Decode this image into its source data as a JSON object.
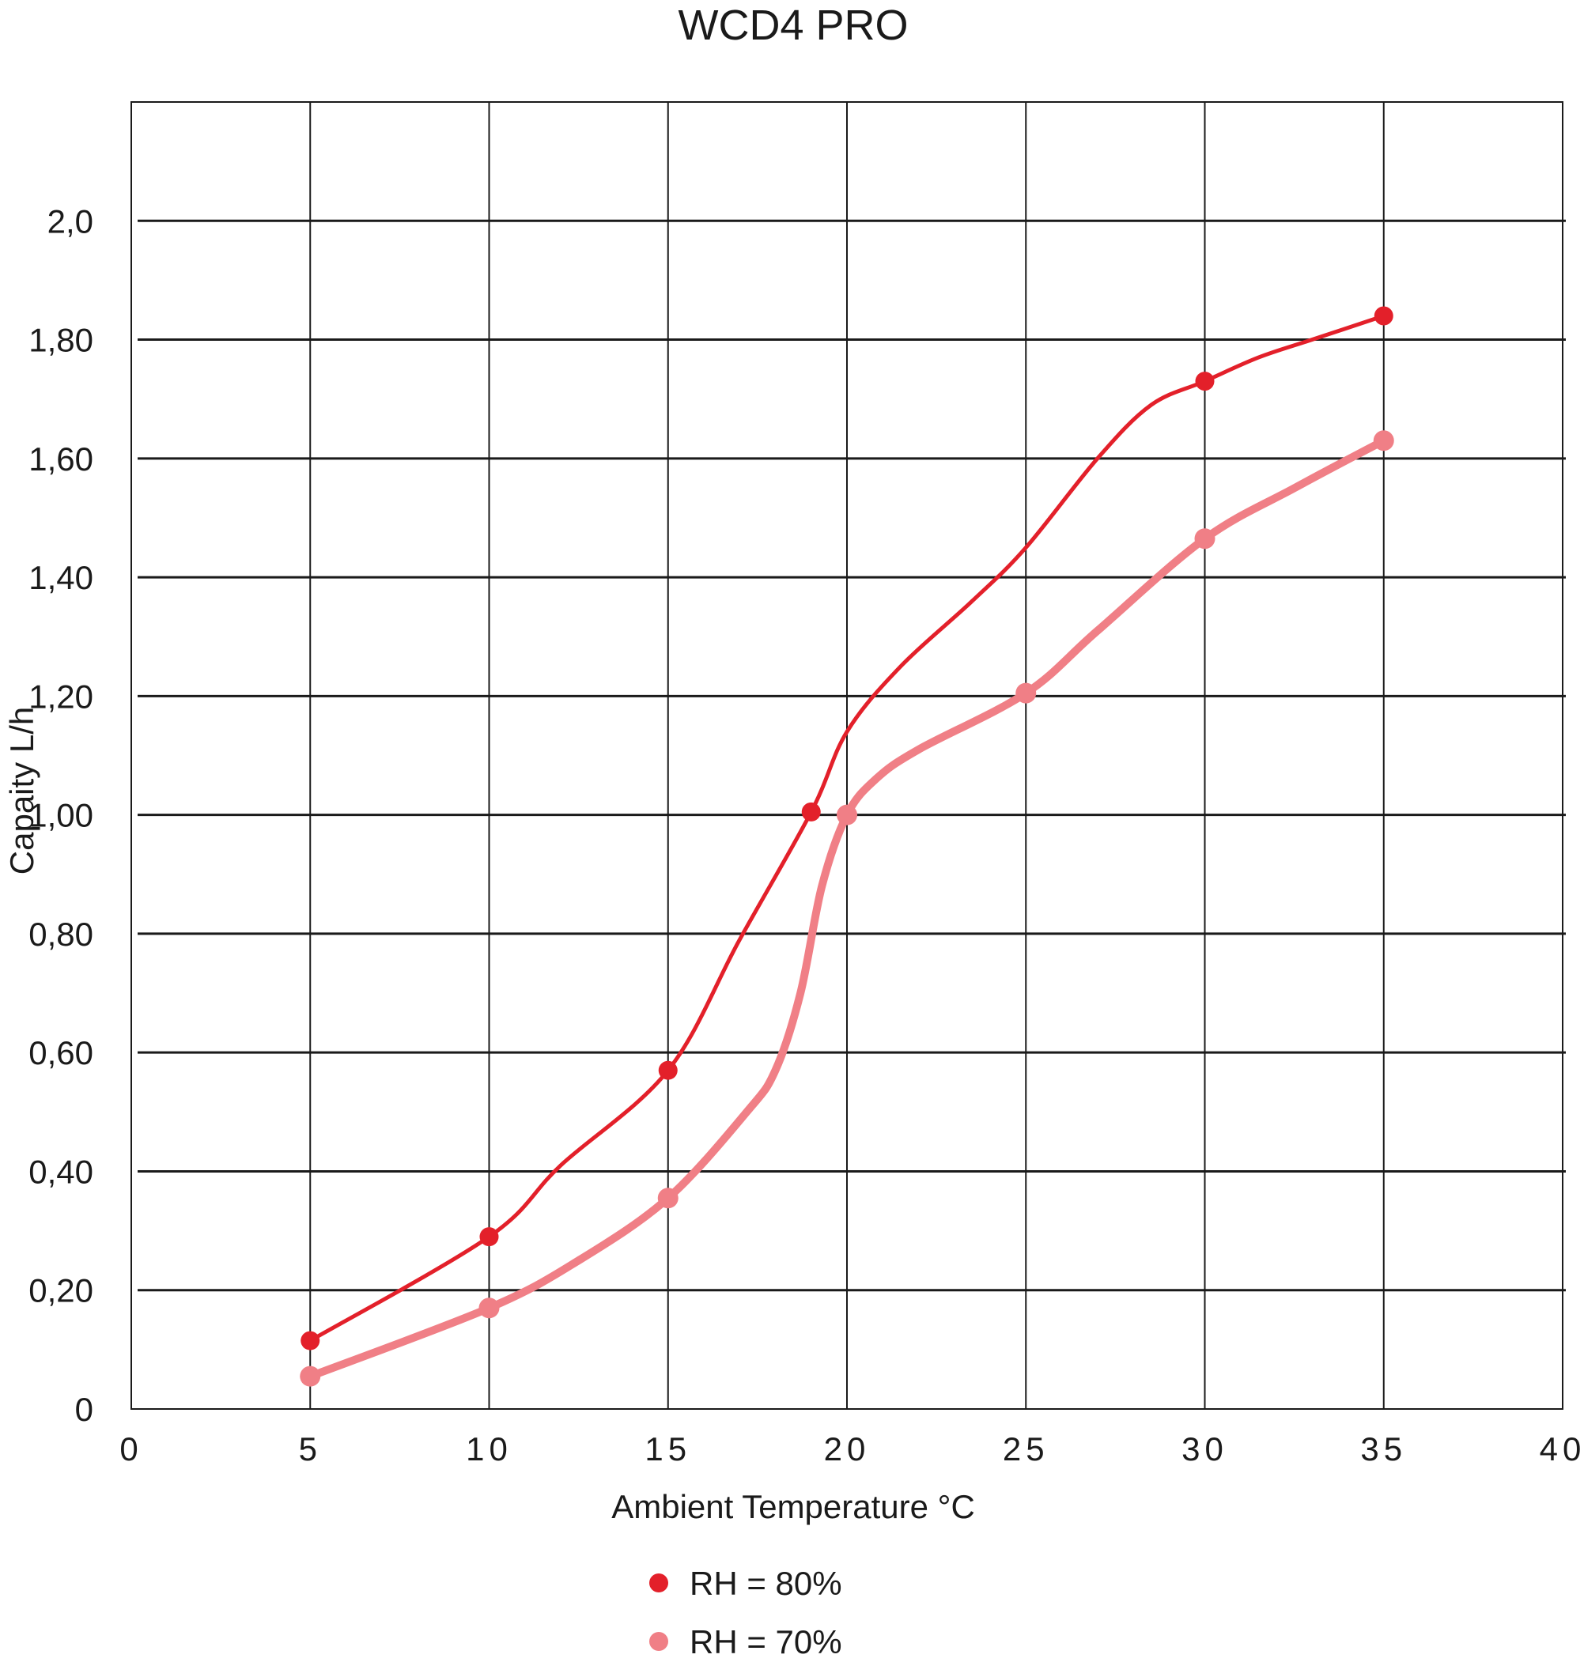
{
  "chart_data": {
    "type": "line",
    "title": "WCD4 PRO",
    "xlabel": "Ambient Temperature °C",
    "ylabel": "Capaity L/h",
    "xlim": [
      0,
      40
    ],
    "ylim": [
      0,
      2.2
    ],
    "x_ticks": [
      {
        "value": 0,
        "label": "0"
      },
      {
        "value": 5,
        "label": "5"
      },
      {
        "value": 10,
        "label": "10"
      },
      {
        "value": 15,
        "label": "15"
      },
      {
        "value": 20,
        "label": "20"
      },
      {
        "value": 25,
        "label": "25"
      },
      {
        "value": 30,
        "label": "30"
      },
      {
        "value": 35,
        "label": "35"
      },
      {
        "value": 40,
        "label": "40"
      }
    ],
    "y_ticks": [
      {
        "value": 0,
        "label": "0"
      },
      {
        "value": 0.2,
        "label": "0,20"
      },
      {
        "value": 0.4,
        "label": "0,40"
      },
      {
        "value": 0.6,
        "label": "0,60"
      },
      {
        "value": 0.8,
        "label": "0,80"
      },
      {
        "value": 1.0,
        "label": "1,00"
      },
      {
        "value": 1.2,
        "label": "1,20"
      },
      {
        "value": 1.4,
        "label": "1,40"
      },
      {
        "value": 1.6,
        "label": "1,60"
      },
      {
        "value": 1.8,
        "label": "1,80"
      },
      {
        "value": 2.0,
        "label": "2,0"
      }
    ],
    "grid": true,
    "legend_position": "bottom-center",
    "series": [
      {
        "name": "RH = 80%",
        "color": "#e3202a",
        "x": [
          5,
          10,
          15,
          19,
          30,
          35
        ],
        "y": [
          0.115,
          0.29,
          0.57,
          1.005,
          1.73,
          1.84
        ]
      },
      {
        "name": "RH = 70%",
        "color": "#f07f86",
        "x": [
          5,
          10,
          15,
          20,
          25,
          30,
          35
        ],
        "y": [
          0.055,
          0.17,
          0.355,
          1.0,
          1.205,
          1.465,
          1.63
        ]
      }
    ],
    "curve_points": [
      {
        "x": [
          5,
          10,
          12,
          15,
          17,
          19,
          20,
          21.5,
          23.5,
          25,
          27,
          28.5,
          30,
          31.5,
          33,
          35
        ],
        "y": [
          0.115,
          0.29,
          0.41,
          0.57,
          0.79,
          1.005,
          1.14,
          1.25,
          1.36,
          1.45,
          1.6,
          1.69,
          1.73,
          1.77,
          1.8,
          1.84
        ]
      },
      {
        "x": [
          5,
          10,
          12.5,
          15,
          17.2,
          18,
          18.7,
          19.3,
          20,
          20.8,
          22,
          25,
          27,
          30,
          32.5,
          35
        ],
        "y": [
          0.055,
          0.17,
          0.25,
          0.355,
          0.5,
          0.57,
          0.7,
          0.88,
          1.0,
          1.06,
          1.11,
          1.205,
          1.31,
          1.465,
          1.55,
          1.63
        ]
      }
    ],
    "legend_entries": [
      {
        "label": "RH = 80%",
        "color": "#e3202a"
      },
      {
        "label": "RH = 70%",
        "color": "#f07f86"
      }
    ]
  }
}
